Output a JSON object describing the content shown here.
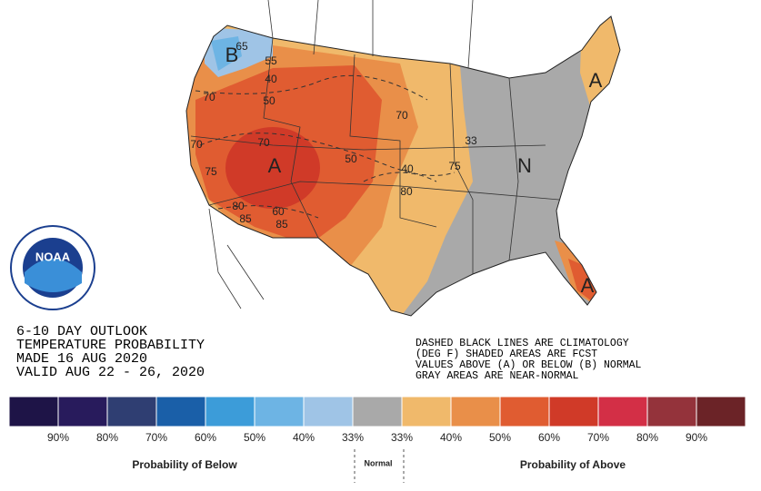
{
  "header": {
    "lines": [
      "6-10 DAY OUTLOOK",
      "TEMPERATURE PROBABILITY",
      "MADE  16 AUG 2020",
      "VALID  AUG 22 - 26, 2020"
    ]
  },
  "notes": [
    "DASHED BLACK LINES ARE CLIMATOLOGY",
    "(DEG F) SHADED AREAS ARE FCST",
    "VALUES ABOVE (A) OR BELOW (B) NORMAL",
    "GRAY AREAS ARE NEAR-NORMAL"
  ],
  "logo": "NOAA",
  "map_labels": [
    "B",
    "55",
    "65",
    "40",
    "50",
    "70",
    "70",
    "75",
    "A",
    "70",
    "80",
    "85",
    "60",
    "85",
    "70",
    "50",
    "40",
    "80",
    "75",
    "33",
    "N",
    "A",
    "A"
  ],
  "legend": {
    "colors": [
      "#1e1447",
      "#281b5c",
      "#2f3e72",
      "#1a5fa8",
      "#3c9cd9",
      "#6db4e4",
      "#9fc4e6",
      "#a9a9a9",
      "#f0b96b",
      "#e98f49",
      "#e05c31",
      "#d03a28",
      "#d32f46",
      "#94333b",
      "#6b2327"
    ],
    "labels": [
      "90%",
      "80%",
      "70%",
      "60%",
      "50%",
      "40%",
      "33%",
      "33%",
      "40%",
      "50%",
      "60%",
      "70%",
      "80%",
      "90%"
    ],
    "below": "Probability of Below",
    "normal": "Normal",
    "above": "Probability of Above"
  }
}
